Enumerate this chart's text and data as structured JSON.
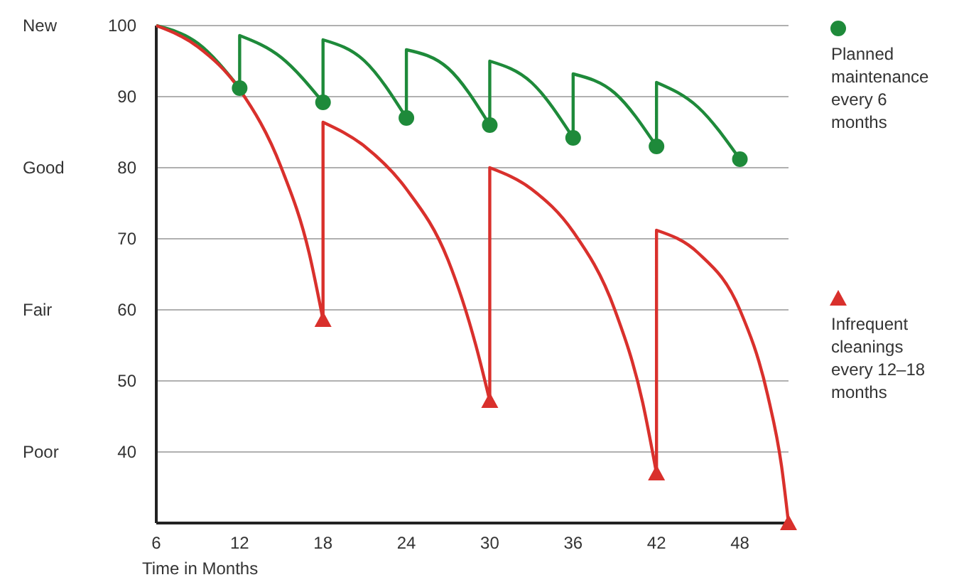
{
  "chart_data": {
    "type": "line",
    "xlabel": "Time in Months",
    "xlim": [
      6,
      51.5
    ],
    "xticks": [
      6,
      12,
      18,
      24,
      30,
      36,
      42,
      48
    ],
    "ylim": [
      30,
      100
    ],
    "yticks": [
      40,
      50,
      60,
      70,
      80,
      90,
      100
    ],
    "grid": "y",
    "legend": "right",
    "line_style": "solid",
    "annotations": [
      "New",
      "Good",
      "Fair",
      "Poor"
    ],
    "series": [
      {
        "color": "#1e8a3a",
        "marker": "none",
        "x": [
          6,
          9,
          12,
          12,
          15,
          18,
          18,
          21,
          24,
          24,
          27,
          30,
          30,
          33,
          36,
          36,
          39,
          42,
          42,
          45,
          48
        ],
        "values": [
          100,
          97.5,
          91.2,
          98.6,
          95.5,
          89.2,
          98,
          95,
          87,
          96.6,
          94,
          86,
          95,
          92,
          84.2,
          93.2,
          90.5,
          83,
          92,
          88.5,
          81.2
        ]
      },
      {
        "color": "#d9302c",
        "marker": "none",
        "x": [
          6,
          9,
          12,
          15,
          17,
          18,
          18,
          21,
          24,
          27,
          29,
          30,
          30,
          33,
          36,
          39,
          41,
          42,
          42,
          45,
          48,
          50,
          51,
          51.5
        ],
        "values": [
          100,
          97,
          91,
          80,
          68,
          58.6,
          86.4,
          83,
          77,
          67,
          55,
          47.2,
          80,
          77,
          71,
          60,
          47,
          37,
          71.2,
          68,
          60,
          48,
          38,
          30
        ]
      },
      {
        "type": "scatter",
        "name": "Planned maintenance every 6 months",
        "color": "#1e8a3a",
        "marker": "circle",
        "x": [
          12,
          18,
          24,
          30,
          36,
          42,
          48
        ],
        "values": [
          91.2,
          89.2,
          87,
          86,
          84.2,
          83,
          81.2
        ]
      },
      {
        "type": "scatter",
        "name": "Infrequent cleanings every 12–18 months",
        "color": "#d9302c",
        "marker": "triangle",
        "x": [
          18,
          30,
          42,
          51.5
        ],
        "values": [
          58.6,
          47.2,
          37,
          30
        ]
      }
    ]
  }
}
